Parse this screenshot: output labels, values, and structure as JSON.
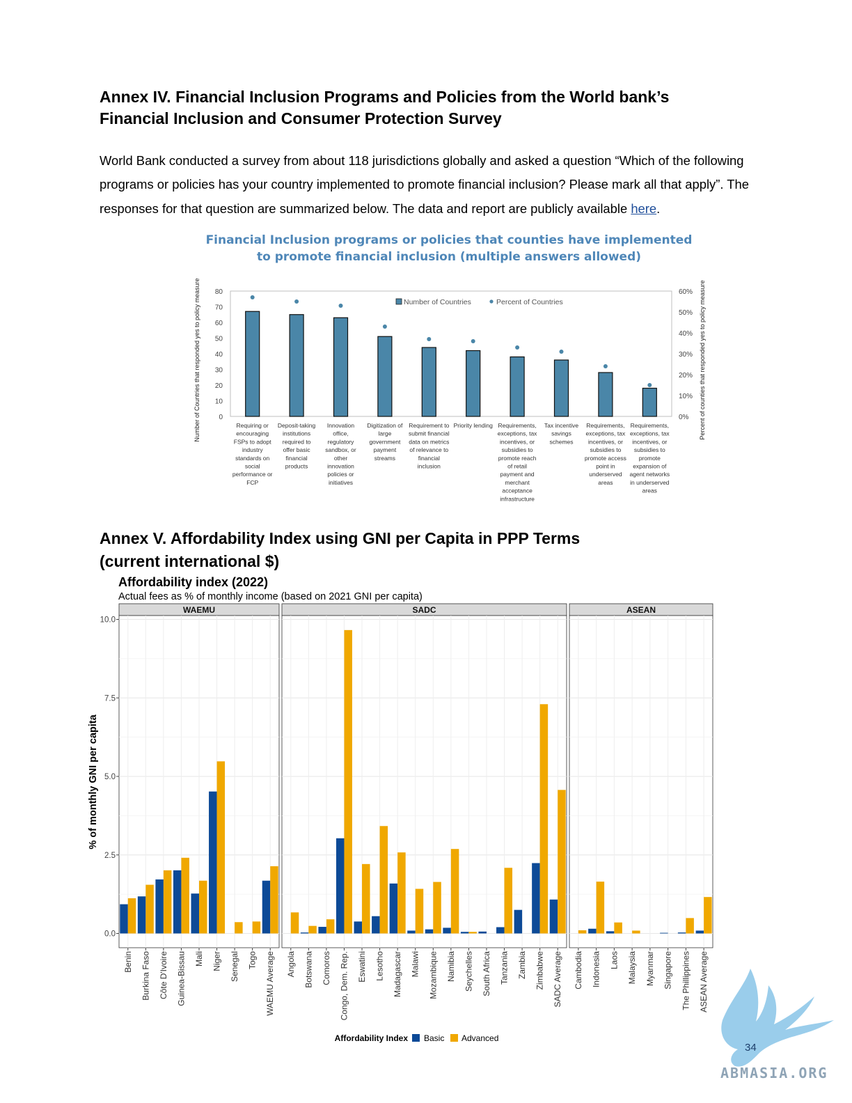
{
  "annex4": {
    "heading_line1": "Annex IV. Financial Inclusion Programs and Policies from the World bank’s",
    "heading_line2": "Financial Inclusion and Consumer Protection Survey",
    "paragraph": "World Bank conducted a survey from about 118 jurisdictions globally and asked a question “Which of the following programs or policies has your country implemented to promote financial inclusion? Please mark all that apply”. The responses for that question are summarized below. The data and report are publicly available ",
    "link_text": "here",
    "paragraph_end": "."
  },
  "annex5": {
    "heading_line1": "Annex V. Affordability Index using GNI per Capita in PPP Terms",
    "heading_line2": "(current international $)"
  },
  "page_number": "34",
  "watermark": "ABMASIA.ORG",
  "chart_data": [
    {
      "type": "bar",
      "title_line1": "Financial Inclusion programs or policies that counties have implemented",
      "title_line2": "to promote financial inclusion (multiple answers allowed)",
      "ylabel": "Number of Countries  that responded yes to policy measure",
      "y2label": "Percent of counties that responded yes to policy measure",
      "ylim": [
        0,
        80
      ],
      "yticks": [
        "0",
        "10",
        "20",
        "30",
        "40",
        "50",
        "60",
        "70",
        "80"
      ],
      "y2lim": [
        0,
        60
      ],
      "y2ticks": [
        "0%",
        "10%",
        "20%",
        "30%",
        "40%",
        "50%",
        "60%"
      ],
      "legend": [
        "Number of Countries",
        "Percent of Countries"
      ],
      "legend_position": "top-right",
      "categories": [
        [
          "Requiring or",
          "encouraging",
          "FSPs to adopt",
          "industry",
          "standards on",
          "social",
          "performance or",
          "FCP"
        ],
        [
          "Deposit-taking",
          "institutions",
          "required to",
          "offer basic",
          "financial",
          "products"
        ],
        [
          "Innovation",
          "office,",
          "regulatory",
          "sandbox, or",
          "other",
          "innovation",
          "policies or",
          "initiatives"
        ],
        [
          "Digitization of",
          "large",
          "government",
          "payment",
          "streams"
        ],
        [
          "Requirement to",
          "submit financial",
          "data on metrics",
          "of relevance to",
          "financial",
          "inclusion"
        ],
        [
          "Priority lending"
        ],
        [
          "Requirements,",
          "exceptions, tax",
          "incentives, or",
          "subsidies to",
          "promote reach",
          "of retail",
          "payment and",
          "merchant",
          "acceptance",
          "infrastructure"
        ],
        [
          "Tax incentive",
          "savings",
          "schemes"
        ],
        [
          "Requirements,",
          "exceptions, tax",
          "incentives, or",
          "subsidies to",
          "promote access",
          "point in",
          "underserved",
          "areas"
        ],
        [
          "Requirements,",
          "exceptions, tax",
          "incentives, or",
          "subsidies to",
          "promote",
          "expansion of",
          "agent networks",
          "in underserved",
          "areas"
        ]
      ],
      "series": [
        {
          "name": "Number of Countries",
          "type": "bar",
          "color": "#4a86a8",
          "values": [
            67,
            65,
            63,
            51,
            44,
            42,
            38,
            36,
            28,
            18
          ]
        },
        {
          "name": "Percent of Countries",
          "type": "scatter",
          "color": "#4a86a8",
          "values": [
            57,
            55,
            53,
            43,
            37,
            36,
            33,
            31,
            24,
            15
          ]
        }
      ],
      "grid": false
    },
    {
      "type": "bar",
      "title": "Affordability index (2022)",
      "subtitle": "Actual fees as % of monthly income (based on 2021 GNI per capita)",
      "ylabel": "% of monthly GNI per capita",
      "ylim": [
        0,
        10.5
      ],
      "yticks": [
        "0.0",
        "2.5",
        "5.0",
        "7.5",
        "10.0"
      ],
      "legend_title": "Affordability Index",
      "legend_position": "bottom",
      "grid": true,
      "series_names": [
        "Basic",
        "Advanced"
      ],
      "colors": {
        "Basic": "#0d4a97",
        "Advanced": "#f0a800"
      },
      "panels": [
        {
          "name": "WAEMU",
          "categories": [
            "Benin",
            "Burkina Faso",
            "Côte D'Ivoire",
            "Guinea-Bissau",
            "Mali",
            "Niger",
            "Senegal",
            "Togo",
            "WAEMU Average"
          ],
          "basic": [
            0.93,
            1.18,
            1.72,
            2.01,
            1.27,
            4.52,
            0,
            0,
            1.68
          ],
          "advanced": [
            1.12,
            1.55,
            2.01,
            2.41,
            1.68,
            5.48,
            0.36,
            0.38,
            2.14
          ]
        },
        {
          "name": "SADC",
          "categories": [
            "Angola",
            "Botswana",
            "Comoros",
            "Congo, Dem. Rep.",
            "Eswatini",
            "Lesotho",
            "Madagascar",
            "Malawi",
            "Mozambique",
            "Namibia",
            "Seychelles",
            "South Africa",
            "Tanzania",
            "Zambia",
            "Zimbabwe",
            "SADC Average"
          ],
          "basic": [
            0,
            0.03,
            0.21,
            3.03,
            0.38,
            0.55,
            1.59,
            0.09,
            0.13,
            0.18,
            0.05,
            0.06,
            0.2,
            0.75,
            2.24,
            1.08
          ],
          "advanced": [
            0.67,
            0.24,
            0.45,
            9.66,
            2.21,
            3.42,
            2.58,
            1.42,
            1.64,
            2.69,
            0.05,
            0,
            2.09,
            0,
            7.3,
            4.57
          ]
        },
        {
          "name": "ASEAN",
          "categories": [
            "Cambodia",
            "Indonesia",
            "Laos",
            "Malaysia",
            "Myanmar",
            "Singapore",
            "The Phillippines",
            "ASEAN Average"
          ],
          "basic": [
            0,
            0.15,
            0.07,
            0,
            0,
            0.02,
            0.03,
            0.09
          ],
          "advanced": [
            0.1,
            1.65,
            0.35,
            0.09,
            0,
            0,
            0.49,
            1.16
          ]
        }
      ]
    }
  ]
}
